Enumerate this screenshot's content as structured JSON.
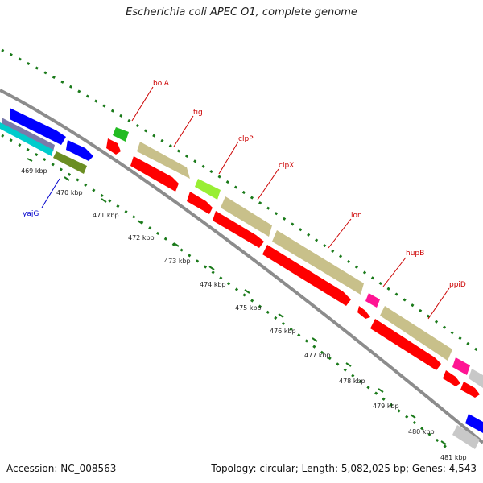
{
  "title": "Escherichia coli APEC O1, complete genome",
  "accession": "Accession: NC_008563",
  "stats": "Topology: circular; Length: 5,082,025 bp; Genes: 4,543",
  "colors": {
    "backbone": "#8c8c8c",
    "ruler_dots": "#1a7a1a",
    "forward_cds": "#c8c08a",
    "reverse_cds": "#ff0000",
    "label_red": "#cc0000",
    "label_blue": "#0000cc",
    "blue_gene": "#0000ff",
    "green_gene": "#22bb22",
    "olive_gene": "#6b8e23",
    "lime_gene": "#99ee33",
    "magenta_gene": "#ff1493",
    "grey_gene": "#c8c8c8",
    "cyan_gene": "#00cccc"
  },
  "tick_labels": [
    "469 kbp",
    "470 kbp",
    "471 kbp",
    "472 kbp",
    "473 kbp",
    "474 kbp",
    "475 kbp",
    "476 kbp",
    "477 kbp",
    "478 kbp",
    "479 kbp",
    "480 kbp",
    "481 kbp"
  ],
  "gene_labels": [
    {
      "text": "bolA",
      "color": "#cc0000"
    },
    {
      "text": "tig",
      "color": "#cc0000"
    },
    {
      "text": "clpP",
      "color": "#cc0000"
    },
    {
      "text": "clpX",
      "color": "#cc0000"
    },
    {
      "text": "lon",
      "color": "#cc0000"
    },
    {
      "text": "hupB",
      "color": "#cc0000"
    },
    {
      "text": "ppiD",
      "color": "#cc0000"
    },
    {
      "text": "yajG",
      "color": "#0000cc"
    }
  ]
}
